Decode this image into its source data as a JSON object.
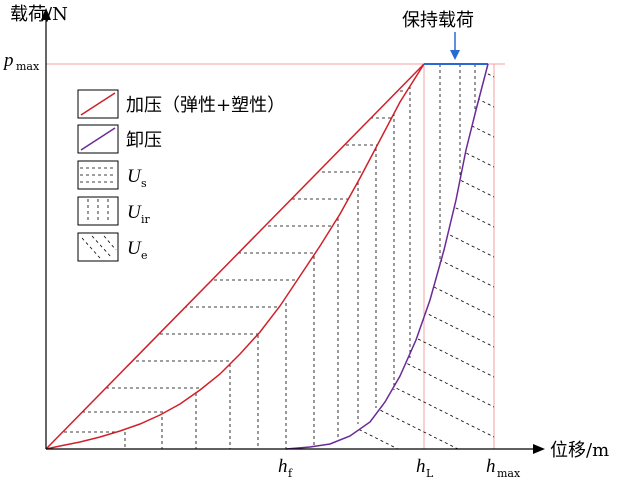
{
  "axes": {
    "y_label": "载荷/N",
    "x_label": "位移/m",
    "p_max_main": "p",
    "p_max_sub": "max",
    "h_f_main": "h",
    "h_f_sub": "f",
    "h_L_main": "h",
    "h_L_sub": "L",
    "h_max_main": "h",
    "h_max_sub": "max"
  },
  "annotation": {
    "hold_load": "保持载荷"
  },
  "legend": {
    "items": [
      {
        "label": "加压（弹性+塑性）",
        "kind": "red-line"
      },
      {
        "label": "卸压",
        "kind": "purple-line"
      },
      {
        "label_main": "U",
        "label_sub": "s",
        "kind": "horizontal-hatch"
      },
      {
        "label_main": "U",
        "label_sub": "ir",
        "kind": "vertical-hatch"
      },
      {
        "label_main": "U",
        "label_sub": "e",
        "kind": "diagonal-hatch"
      }
    ]
  },
  "colors": {
    "loading_curve": "#d0202a",
    "unloading_curve": "#6a2a9a",
    "hold_line": "#2a6ad0",
    "guide_line": "#f0a0a0",
    "hatch": "#000000",
    "arrow": "#2a6ad0"
  }
}
